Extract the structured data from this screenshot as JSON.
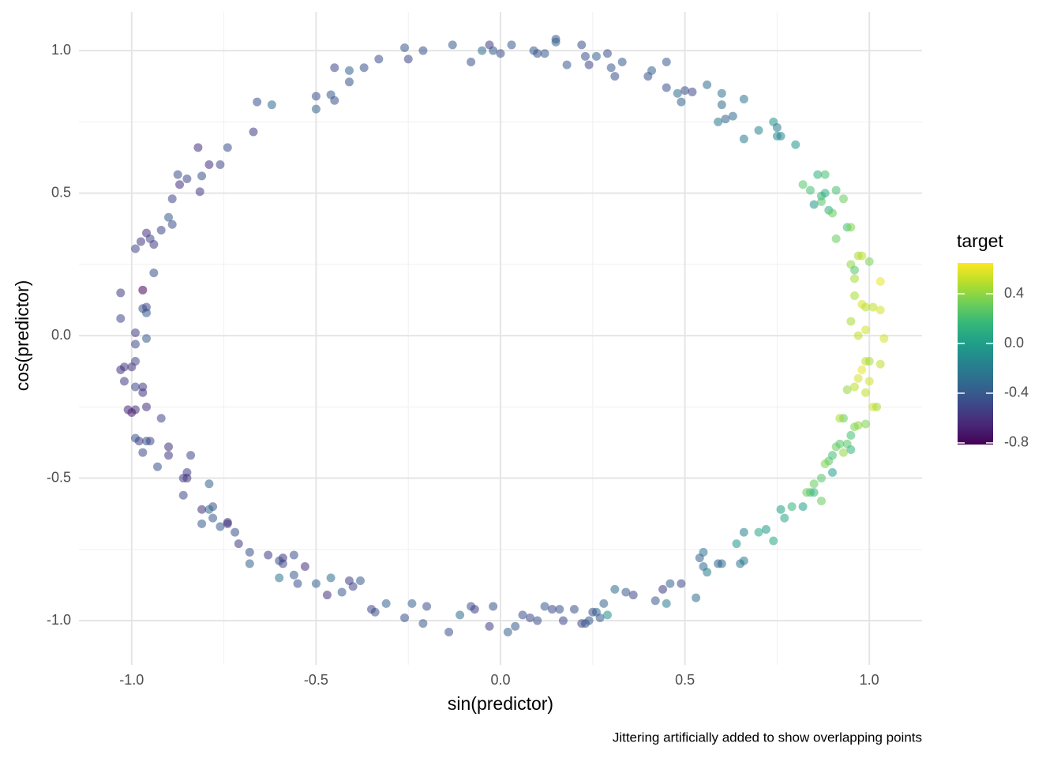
{
  "chart_data": {
    "type": "scatter",
    "x_label": "sin(predictor)",
    "y_label": "cos(predictor)",
    "caption": "Jittering artificially added to show overlapping points",
    "color_label": "target",
    "colormap": "viridis",
    "opacity": 0.55,
    "grid": true,
    "xlim": [
      -1.143,
      1.143
    ],
    "ylim": [
      -1.155,
      1.136
    ],
    "xticks": [
      {
        "value": -1,
        "label": "-1.0"
      },
      {
        "value": -0.5,
        "label": "-0.5"
      },
      {
        "value": 0,
        "label": "0.0"
      },
      {
        "value": 0.5,
        "label": "0.5"
      },
      {
        "value": 1,
        "label": "1.0"
      }
    ],
    "yticks": [
      {
        "value": -1,
        "label": "-1.0"
      },
      {
        "value": -0.5,
        "label": "-0.5"
      },
      {
        "value": 0,
        "label": "0.0"
      },
      {
        "value": 0.5,
        "label": "0.5"
      },
      {
        "value": 1,
        "label": "1.0"
      }
    ],
    "x_minor_grid": [
      -0.75,
      -0.25,
      0.25,
      0.75
    ],
    "y_minor_grid": [
      -0.75,
      -0.25,
      0.25,
      0.75
    ],
    "clim": [
      -0.813,
      0.648
    ],
    "cticks": [
      0.4,
      {
        "value": 0,
        "label": "0.0"
      },
      -0.4,
      -0.8
    ],
    "x": [
      -0.99,
      -0.975,
      -0.95,
      -0.96,
      -0.94,
      -0.92,
      -0.9,
      -0.89,
      -0.89,
      -0.875,
      -0.87,
      -0.85,
      -0.815,
      -0.82,
      -0.81,
      -0.79,
      -0.76,
      -0.74,
      -0.67,
      -0.66,
      -0.62,
      -0.5,
      -0.5,
      -0.46,
      -0.45,
      -0.45,
      -0.41,
      -0.41,
      -0.37,
      -0.33,
      -0.26,
      -0.25,
      -0.21,
      -0.13,
      -0.08,
      -0.05,
      -0.03,
      -0.02,
      0.0,
      0.03,
      0.09,
      0.1,
      0.12,
      0.15,
      0.15,
      0.18,
      0.22,
      0.23,
      0.24,
      0.26,
      0.29,
      0.3,
      0.31,
      0.33,
      0.4,
      0.41,
      0.45,
      0.45,
      0.48,
      0.49,
      0.5,
      0.52,
      0.56,
      0.6,
      0.6,
      0.59,
      0.61,
      0.63,
      0.66,
      0.66,
      0.7,
      0.74,
      0.75,
      0.75,
      0.76,
      0.8,
      0.82,
      0.84,
      0.85,
      0.86,
      0.87,
      0.87,
      0.88,
      0.88,
      0.89,
      0.9,
      0.91,
      0.91,
      0.93,
      0.94,
      0.95,
      0.95,
      0.96,
      0.96,
      0.97,
      0.98,
      0.98,
      0.96,
      0.99,
      1.0,
      1.01,
      1.03,
      1.03,
      0.95,
      0.99,
      0.97,
      1.04,
      0.99,
      1.0,
      1.03,
      0.98,
      0.97,
      1.0,
      0.94,
      0.96,
      0.99,
      1.01,
      1.02,
      0.96,
      0.97,
      0.99,
      0.93,
      0.92,
      0.95,
      0.94,
      0.95,
      0.92,
      0.91,
      0.93,
      0.9,
      0.89,
      0.88,
      0.9,
      0.87,
      0.85,
      0.84,
      0.83,
      0.85,
      0.87,
      0.82,
      0.79,
      0.76,
      0.77,
      0.74,
      0.72,
      0.7,
      0.66,
      0.64,
      0.66,
      0.65,
      0.6,
      0.59,
      0.55,
      0.54,
      0.55,
      0.56,
      0.53,
      0.49,
      0.46,
      0.44,
      0.45,
      0.42,
      0.34,
      0.36,
      0.31,
      0.28,
      0.26,
      0.27,
      0.29,
      0.25,
      0.22,
      0.23,
      0.24,
      0.2,
      0.17,
      0.16,
      0.14,
      0.12,
      0.1,
      0.08,
      0.06,
      0.04,
      0.02,
      -0.02,
      -0.03,
      -0.07,
      -0.08,
      -0.11,
      -0.14,
      -0.2,
      -0.21,
      -0.24,
      -0.26,
      -0.31,
      -0.34,
      -0.35,
      -0.38,
      -0.4,
      -0.41,
      -0.43,
      -0.46,
      -0.47,
      -0.5,
      -0.53,
      -0.55,
      -0.56,
      -0.56,
      -0.59,
      -0.59,
      -0.6,
      -0.6,
      -0.63,
      -0.68,
      -0.68,
      -0.71,
      -0.72,
      -0.74,
      -0.74,
      -0.76,
      -0.78,
      -0.78,
      -0.79,
      -0.79,
      -0.81,
      -0.81,
      -0.85,
      -0.85,
      -0.86,
      -0.86,
      -0.84,
      -0.9,
      -0.9,
      -0.93,
      -0.95,
      -0.96,
      -0.97,
      -0.98,
      -0.99,
      -0.92,
      -0.96,
      -0.99,
      -1.0,
      -1.01,
      -0.97,
      -0.97,
      -0.99,
      -1.02,
      -1.03,
      -1.02,
      -1.0,
      -0.99,
      -0.99,
      -0.96,
      -0.99,
      -1.03,
      -0.96,
      -0.96,
      -0.97,
      -1.03,
      -0.97,
      -0.94
    ],
    "y": [
      0.305,
      0.33,
      0.34,
      0.36,
      0.32,
      0.37,
      0.415,
      0.39,
      0.48,
      0.565,
      0.53,
      0.55,
      0.505,
      0.66,
      0.56,
      0.6,
      0.6,
      0.66,
      0.715,
      0.82,
      0.81,
      0.795,
      0.84,
      0.845,
      0.825,
      0.94,
      0.93,
      0.89,
      0.94,
      0.97,
      1.01,
      0.97,
      1.0,
      1.02,
      0.96,
      1.0,
      1.02,
      1.0,
      0.99,
      1.02,
      1.0,
      0.99,
      0.99,
      1.04,
      1.03,
      0.95,
      1.02,
      0.98,
      0.95,
      0.98,
      0.99,
      0.94,
      0.91,
      0.96,
      0.91,
      0.93,
      0.96,
      0.87,
      0.85,
      0.82,
      0.86,
      0.855,
      0.88,
      0.85,
      0.81,
      0.75,
      0.76,
      0.77,
      0.83,
      0.69,
      0.72,
      0.75,
      0.73,
      0.7,
      0.7,
      0.67,
      0.53,
      0.51,
      0.46,
      0.565,
      0.49,
      0.47,
      0.5,
      0.565,
      0.44,
      0.43,
      0.51,
      0.34,
      0.48,
      0.38,
      0.38,
      0.25,
      0.23,
      0.2,
      0.28,
      0.28,
      0.11,
      0.14,
      0.1,
      0.26,
      0.1,
      0.09,
      0.19,
      0.05,
      0.02,
      0.0,
      -0.01,
      -0.09,
      -0.09,
      -0.1,
      -0.12,
      -0.15,
      -0.16,
      -0.19,
      -0.18,
      -0.2,
      -0.25,
      -0.25,
      -0.32,
      -0.315,
      -0.31,
      -0.29,
      -0.29,
      -0.35,
      -0.38,
      -0.4,
      -0.38,
      -0.39,
      -0.41,
      -0.42,
      -0.44,
      -0.45,
      -0.48,
      -0.5,
      -0.52,
      -0.55,
      -0.55,
      -0.55,
      -0.58,
      -0.6,
      -0.6,
      -0.61,
      -0.64,
      -0.72,
      -0.68,
      -0.69,
      -0.69,
      -0.73,
      -0.79,
      -0.8,
      -0.8,
      -0.8,
      -0.76,
      -0.78,
      -0.81,
      -0.83,
      -0.92,
      -0.87,
      -0.87,
      -0.89,
      -0.94,
      -0.93,
      -0.9,
      -0.91,
      -0.89,
      -0.94,
      -0.97,
      -0.99,
      -0.98,
      -0.97,
      -1.01,
      -1.01,
      -1.0,
      -0.96,
      -1.0,
      -0.96,
      -0.96,
      -0.95,
      -1.0,
      -0.99,
      -0.98,
      -1.02,
      -1.04,
      -0.95,
      -1.02,
      -0.96,
      -0.95,
      -0.98,
      -1.04,
      -0.95,
      -1.01,
      -0.94,
      -0.99,
      -0.94,
      -0.97,
      -0.96,
      -0.86,
      -0.88,
      -0.86,
      -0.9,
      -0.85,
      -0.91,
      -0.87,
      -0.81,
      -0.87,
      -0.84,
      -0.77,
      -0.8,
      -0.78,
      -0.85,
      -0.79,
      -0.77,
      -0.8,
      -0.76,
      -0.73,
      -0.69,
      -0.655,
      -0.66,
      -0.67,
      -0.6,
      -0.64,
      -0.61,
      -0.52,
      -0.61,
      -0.66,
      -0.48,
      -0.5,
      -0.56,
      -0.5,
      -0.42,
      -0.39,
      -0.42,
      -0.46,
      -0.37,
      -0.37,
      -0.41,
      -0.37,
      -0.36,
      -0.29,
      -0.25,
      -0.26,
      -0.27,
      -0.26,
      -0.2,
      -0.18,
      -0.18,
      -0.11,
      -0.12,
      -0.16,
      -0.11,
      -0.09,
      -0.03,
      -0.01,
      0.01,
      0.06,
      0.08,
      0.1,
      0.095,
      0.15,
      0.16,
      0.22
    ],
    "target": [
      -0.5,
      -0.55,
      -0.5,
      -0.6,
      -0.55,
      -0.5,
      -0.4,
      -0.45,
      -0.5,
      -0.45,
      -0.6,
      -0.5,
      -0.55,
      -0.6,
      -0.45,
      -0.6,
      -0.5,
      -0.45,
      -0.55,
      -0.45,
      -0.3,
      -0.35,
      -0.45,
      -0.4,
      -0.45,
      -0.5,
      -0.35,
      -0.45,
      -0.45,
      -0.45,
      -0.4,
      -0.5,
      -0.45,
      -0.4,
      -0.45,
      -0.3,
      -0.55,
      -0.4,
      -0.45,
      -0.4,
      -0.4,
      -0.45,
      -0.4,
      -0.45,
      -0.35,
      -0.4,
      -0.45,
      -0.45,
      -0.5,
      -0.35,
      -0.45,
      -0.4,
      -0.45,
      -0.4,
      -0.45,
      -0.35,
      -0.4,
      -0.45,
      -0.3,
      -0.35,
      -0.45,
      -0.5,
      -0.3,
      -0.25,
      -0.3,
      -0.2,
      -0.35,
      -0.3,
      -0.25,
      -0.2,
      -0.15,
      -0.05,
      -0.2,
      -0.1,
      -0.15,
      -0.05,
      0.25,
      0.2,
      -0.05,
      0.1,
      0.15,
      0.25,
      0.1,
      0.2,
      0.1,
      0.3,
      0.2,
      0.3,
      0.3,
      0.2,
      0.35,
      0.4,
      0.25,
      0.45,
      0.45,
      0.5,
      0.55,
      0.45,
      0.5,
      0.35,
      0.5,
      0.55,
      0.6,
      0.45,
      0.55,
      0.5,
      0.55,
      0.5,
      0.45,
      0.5,
      0.6,
      0.55,
      0.55,
      0.4,
      0.5,
      0.5,
      0.55,
      0.45,
      0.35,
      0.4,
      0.35,
      0.3,
      0.45,
      0.2,
      0.25,
      0.15,
      0.25,
      0.3,
      0.4,
      0.2,
      0.25,
      0.35,
      0.0,
      0.25,
      0.3,
      0.2,
      0.3,
      0.15,
      0.3,
      0.0,
      0.15,
      0.0,
      0.05,
      0.05,
      -0.05,
      0.05,
      -0.15,
      -0.05,
      -0.2,
      -0.25,
      -0.3,
      -0.35,
      -0.25,
      -0.35,
      -0.3,
      -0.2,
      -0.3,
      -0.5,
      -0.35,
      -0.55,
      -0.2,
      -0.4,
      -0.4,
      -0.5,
      -0.3,
      -0.35,
      -0.3,
      -0.4,
      -0.1,
      -0.45,
      -0.5,
      -0.45,
      -0.4,
      -0.45,
      -0.5,
      -0.45,
      -0.5,
      -0.4,
      -0.45,
      -0.5,
      -0.45,
      -0.4,
      -0.35,
      -0.45,
      -0.55,
      -0.55,
      -0.45,
      -0.3,
      -0.45,
      -0.45,
      -0.4,
      -0.35,
      -0.45,
      -0.35,
      -0.45,
      -0.5,
      -0.4,
      -0.5,
      -0.55,
      -0.4,
      -0.3,
      -0.6,
      -0.35,
      -0.6,
      -0.45,
      -0.4,
      -0.45,
      -0.5,
      -0.6,
      -0.25,
      -0.45,
      -0.55,
      -0.35,
      -0.45,
      -0.55,
      -0.45,
      -0.55,
      -0.6,
      -0.4,
      -0.45,
      -0.4,
      -0.3,
      -0.35,
      -0.6,
      -0.4,
      -0.55,
      -0.6,
      -0.5,
      -0.55,
      -0.5,
      -0.6,
      -0.55,
      -0.45,
      -0.5,
      -0.45,
      -0.5,
      -0.55,
      -0.45,
      -0.5,
      -0.6,
      -0.6,
      -0.7,
      -0.65,
      -0.6,
      -0.55,
      -0.5,
      -0.55,
      -0.6,
      -0.55,
      -0.6,
      -0.5,
      -0.5,
      -0.4,
      -0.55,
      -0.5,
      -0.4,
      -0.5,
      -0.45,
      -0.55,
      -0.8,
      -0.45
    ]
  }
}
